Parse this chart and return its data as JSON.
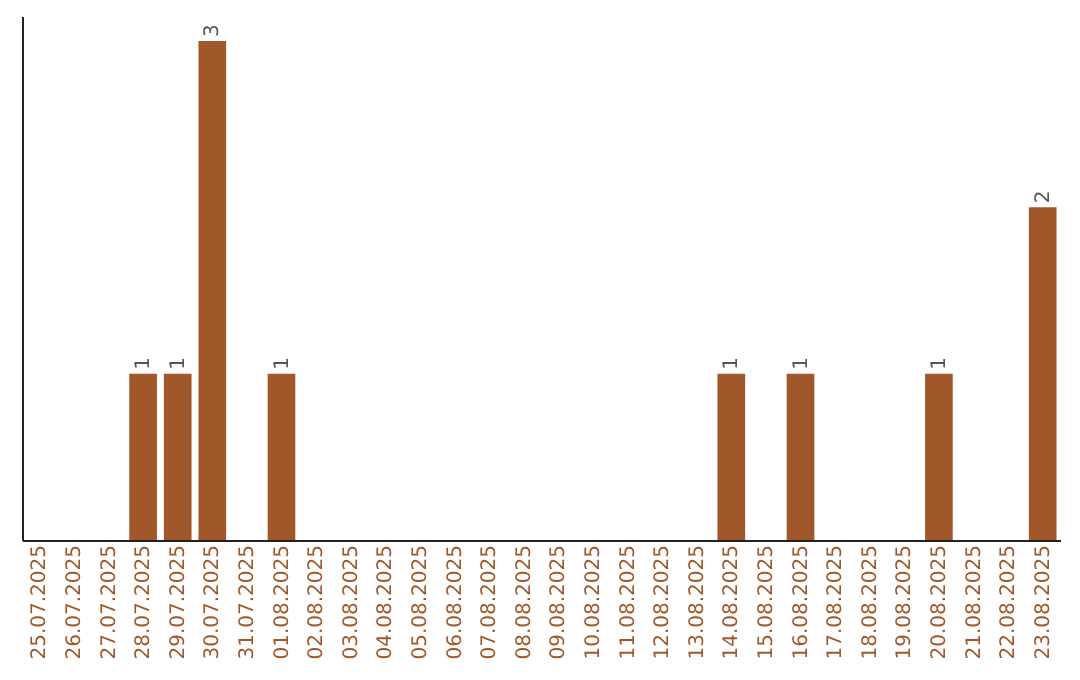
{
  "chart_data": {
    "type": "bar",
    "categories": [
      "25.07.2025",
      "26.07.2025",
      "27.07.2025",
      "28.07.2025",
      "29.07.2025",
      "30.07.2025",
      "31.07.2025",
      "01.08.2025",
      "02.08.2025",
      "03.08.2025",
      "04.08.2025",
      "05.08.2025",
      "06.08.2025",
      "07.08.2025",
      "08.08.2025",
      "09.08.2025",
      "10.08.2025",
      "11.08.2025",
      "12.08.2025",
      "13.08.2025",
      "14.08.2025",
      "15.08.2025",
      "16.08.2025",
      "17.08.2025",
      "18.08.2025",
      "19.08.2025",
      "20.08.2025",
      "21.08.2025",
      "22.08.2025",
      "23.08.2025"
    ],
    "values": [
      0,
      0,
      0,
      1,
      1,
      3,
      0,
      1,
      0,
      0,
      0,
      0,
      0,
      0,
      0,
      0,
      0,
      0,
      0,
      0,
      1,
      0,
      1,
      0,
      0,
      0,
      1,
      0,
      0,
      2
    ],
    "value_labels": [
      null,
      null,
      null,
      "1",
      "1",
      "3",
      null,
      "1",
      null,
      null,
      null,
      null,
      null,
      null,
      null,
      null,
      null,
      null,
      null,
      null,
      "1",
      null,
      "1",
      null,
      null,
      null,
      "1",
      null,
      null,
      "2"
    ],
    "color": "#a0582a",
    "ylim": [
      0,
      3.15
    ],
    "tick_labels": "x",
    "grid": false
  }
}
